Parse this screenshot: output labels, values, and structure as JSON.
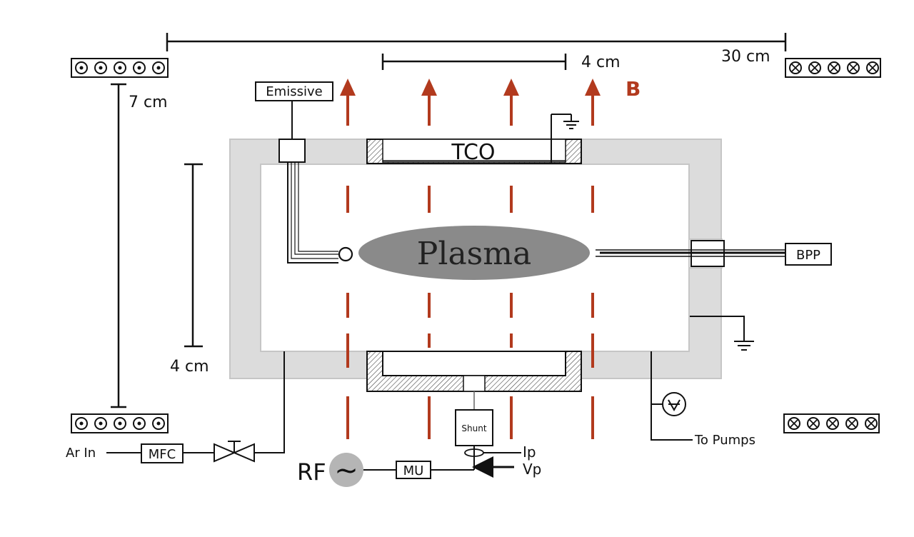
{
  "scale": {
    "top_length": "30 cm",
    "top_inner_length": "4 cm",
    "left_height": "7 cm",
    "chamber_height": "4 cm"
  },
  "field": {
    "label": "B",
    "color": "#b23a1e"
  },
  "components": {
    "emissive": "Emissive",
    "tco": "TCO",
    "plasma": "Plasma",
    "bpp": "BPP",
    "shunt": "Shunt",
    "mfc": "MFC",
    "mu": "MU",
    "rf": "RF",
    "rf_symbol": "~",
    "ar_in": "Ar In",
    "to_pumps": "To Pumps",
    "ip": "Ip",
    "vp": "Vp"
  },
  "colors": {
    "chamber_wall": "#dcdcdc",
    "plasma": "#8a8a8a",
    "rf_source": "#b5b5b5"
  }
}
